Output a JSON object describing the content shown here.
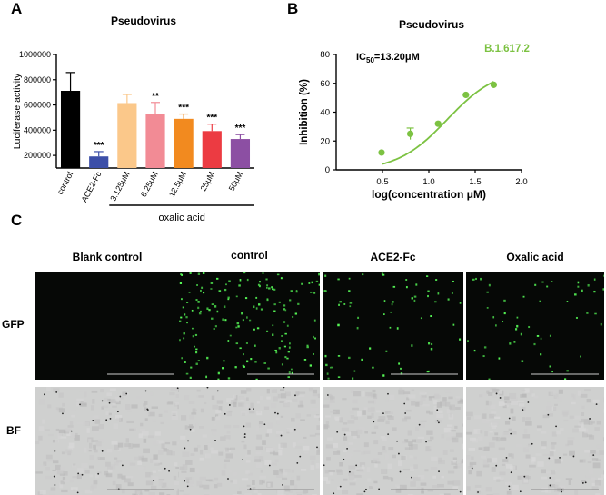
{
  "panels": {
    "a_letter": "A",
    "b_letter": "B",
    "c_letter": "C"
  },
  "chart_data": [
    {
      "type": "bar",
      "title": "Pseudovirus",
      "ylabel": "Luciferase activity",
      "ylim": [
        100000,
        1000000
      ],
      "yticks": [
        200000,
        400000,
        600000,
        800000,
        1000000
      ],
      "ytick_labels": [
        "200000",
        "400000",
        "600000",
        "800000",
        "1000000"
      ],
      "categories": [
        "control",
        "ACE2-Fc",
        "3.125μM",
        "6.25μM",
        "12.5μM",
        "25μM",
        "50μM"
      ],
      "values": [
        712000,
        192000,
        615000,
        528000,
        490000,
        393000,
        330000
      ],
      "errors": [
        145000,
        38000,
        68000,
        92000,
        38000,
        55000,
        35000
      ],
      "significance": [
        "",
        "***",
        "",
        "**",
        "***",
        "***",
        "***"
      ],
      "colors": [
        "#000000",
        "#3c4fa8",
        "#fbc88a",
        "#f28b95",
        "#f28a1f",
        "#ec3b42",
        "#8c4fa3"
      ],
      "group_label": "oxalic acid",
      "grid": false
    },
    {
      "type": "scatter",
      "title": "Pseudovirus",
      "xlabel": "log(concentration μM)",
      "ylabel": "Inhibition (%)",
      "xlim": [
        0,
        2.0
      ],
      "ylim": [
        0,
        80
      ],
      "xticks": [
        0.5,
        1.0,
        1.5,
        2.0
      ],
      "xtick_labels": [
        "0.5",
        "1.0",
        "1.5",
        "2.0"
      ],
      "yticks": [
        0,
        20,
        40,
        60,
        80
      ],
      "ytick_labels": [
        "0",
        "20",
        "40",
        "60",
        "80"
      ],
      "x": [
        0.49,
        0.8,
        1.1,
        1.4,
        1.7
      ],
      "y": [
        12,
        25,
        32,
        52,
        59
      ],
      "yerr": [
        0,
        4,
        0,
        0,
        0
      ],
      "fit_curve": true,
      "series_color": "#7cc242",
      "series_label": "B.1.617.2",
      "annotation_prefix": "IC",
      "annotation_sub": "50",
      "annotation_suffix": "=13.20μM",
      "grid": false
    }
  ],
  "micrographs": {
    "columns": [
      "Blank control",
      "control",
      "ACE2-Fc",
      "Oxalic acid"
    ],
    "rows": [
      "GFP",
      "BF"
    ]
  }
}
